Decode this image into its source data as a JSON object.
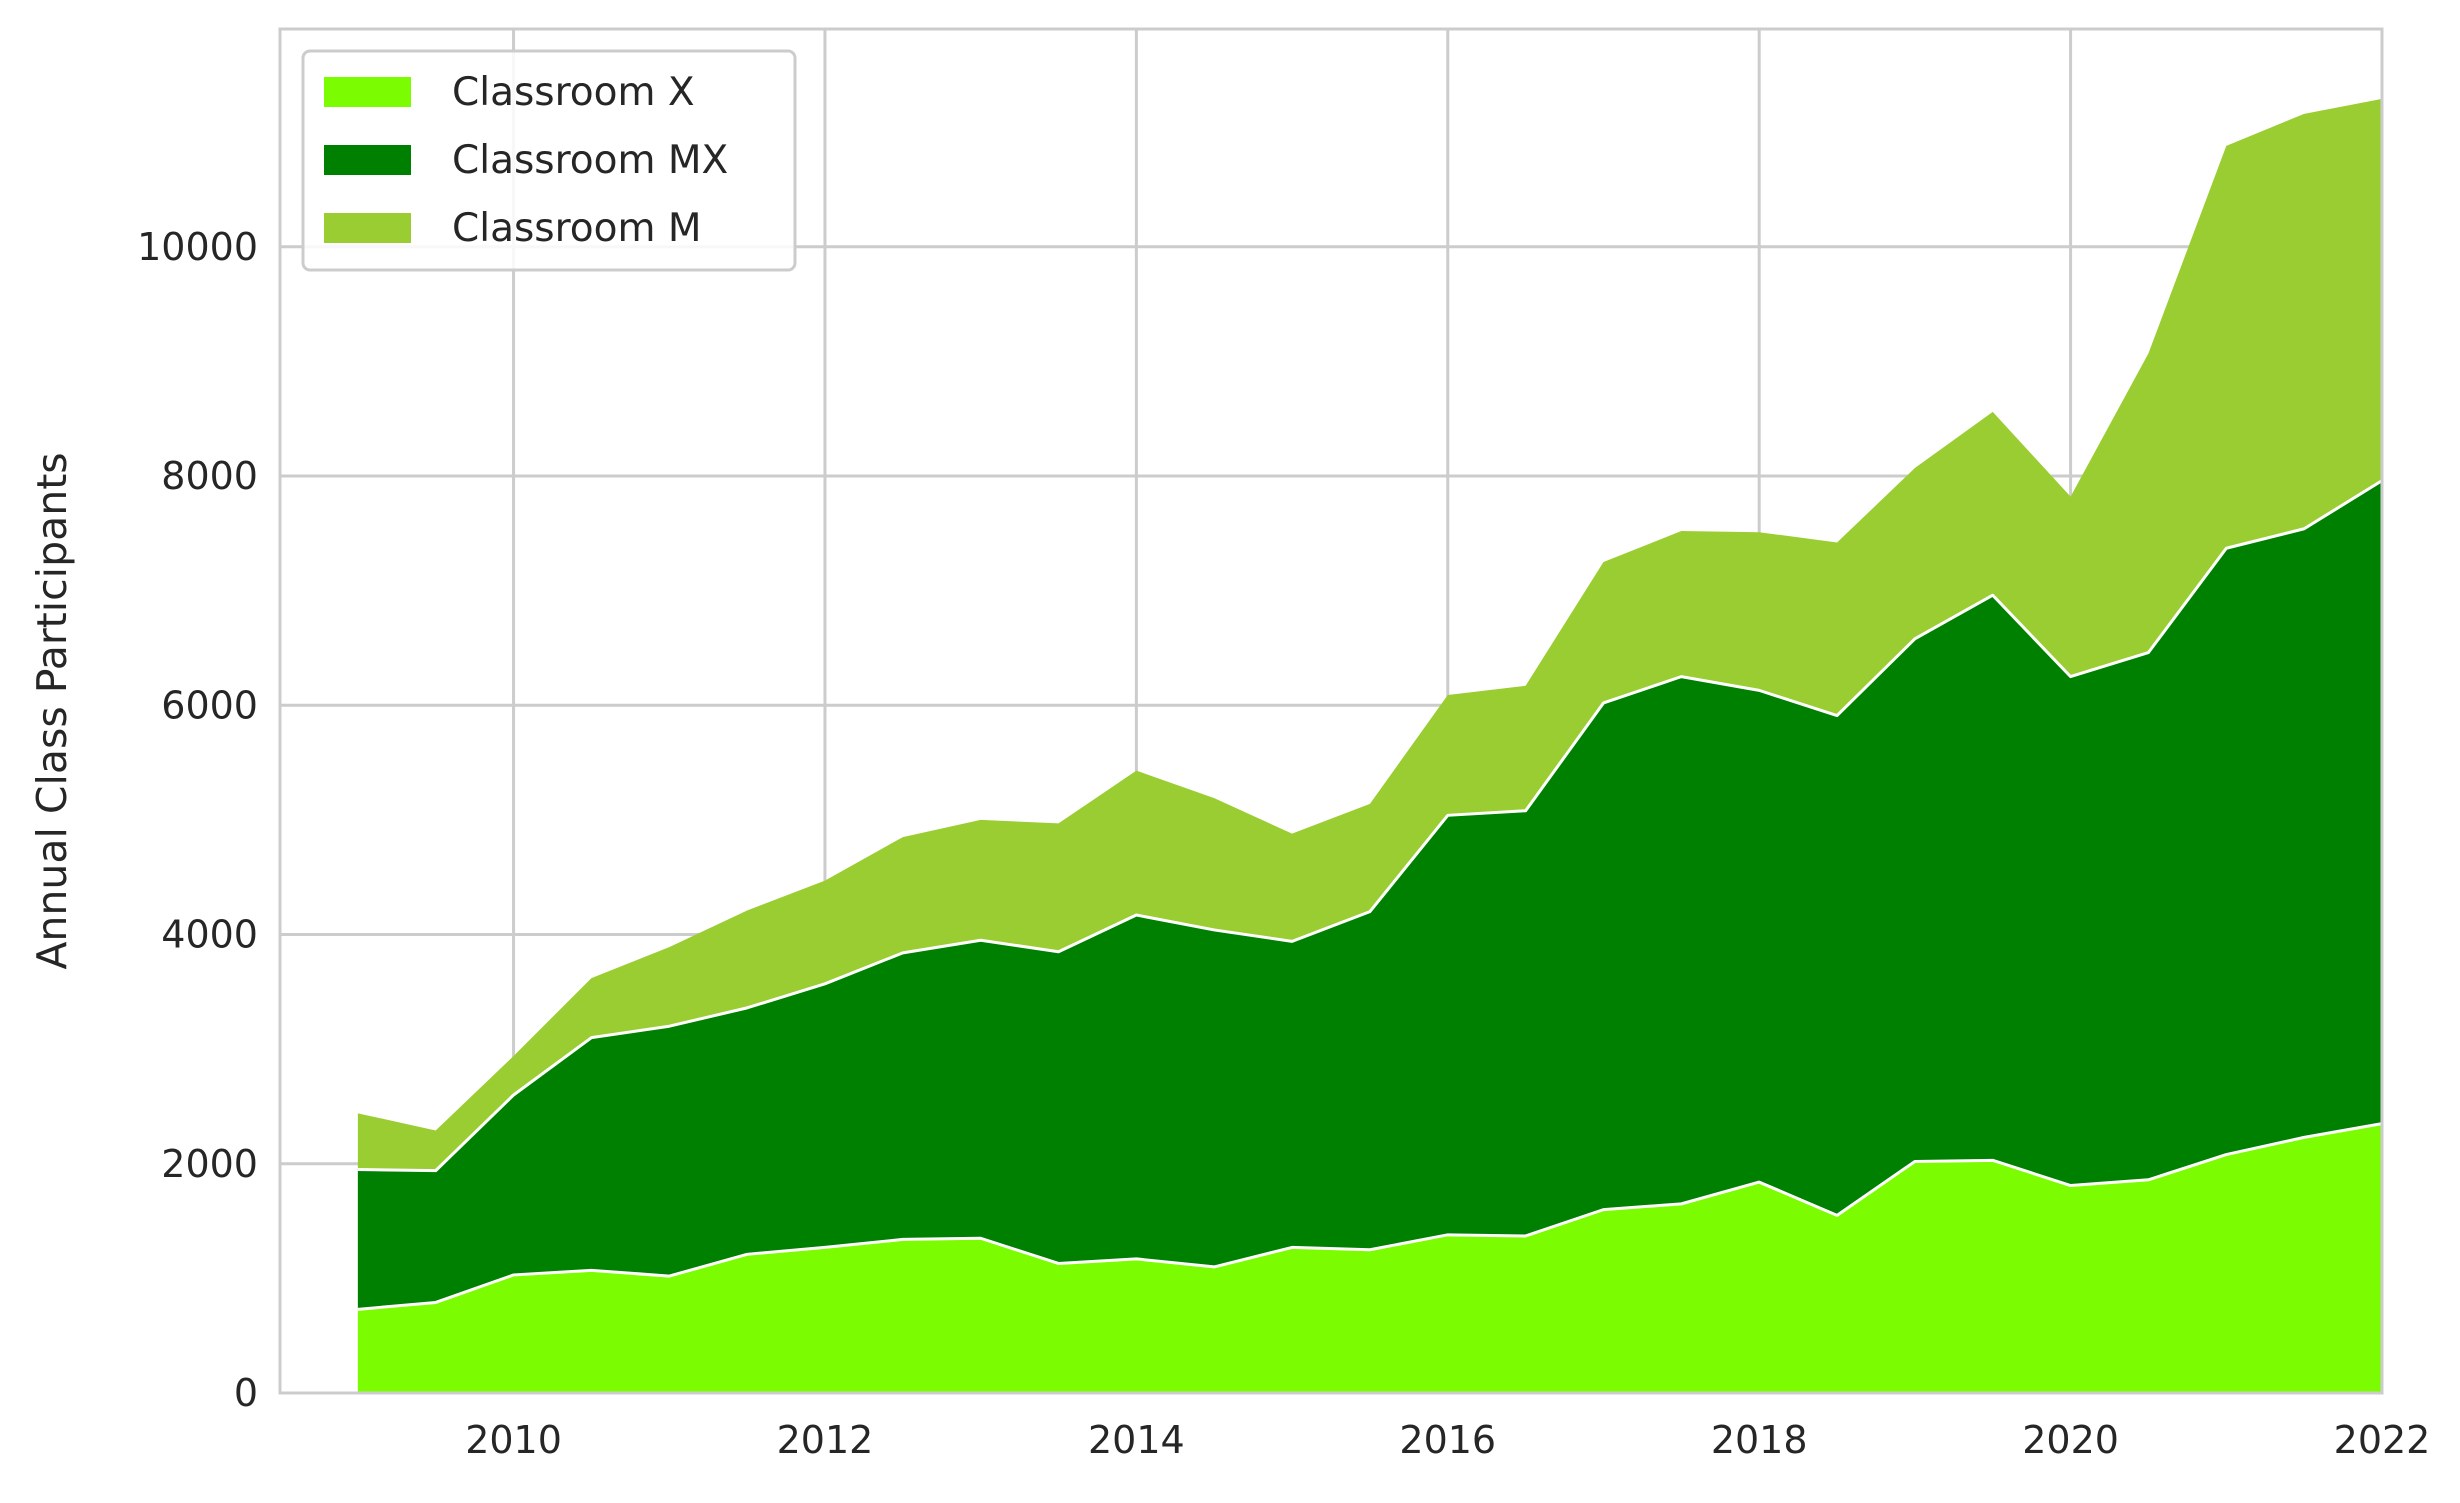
{
  "chart_data": {
    "type": "area",
    "stacked": true,
    "title": "",
    "xlabel": "",
    "ylabel": "Annual Class Participants",
    "xlim": [
      2008.5,
      2022
    ],
    "ylim": [
      0,
      11900
    ],
    "xticks": [
      2010,
      2012,
      2014,
      2016,
      2018,
      2020,
      2022
    ],
    "yticks": [
      0,
      2000,
      4000,
      6000,
      8000,
      10000
    ],
    "grid": true,
    "legend_position": "top-left",
    "x": [
      2009,
      2009.5,
      2010,
      2010.5,
      2011,
      2011.5,
      2012,
      2012.5,
      2013,
      2013.5,
      2014,
      2014.5,
      2015,
      2015.5,
      2016,
      2016.5,
      2017,
      2017.5,
      2018,
      2018.5,
      2019,
      2019.5,
      2020,
      2020.5,
      2021,
      2021.5,
      2022
    ],
    "series": [
      {
        "name": "Classroom X",
        "color": "#7cfc00",
        "values": [
          730,
          790,
          1030,
          1070,
          1020,
          1210,
          1270,
          1340,
          1350,
          1130,
          1170,
          1100,
          1270,
          1250,
          1380,
          1370,
          1600,
          1650,
          1840,
          1550,
          2020,
          2030,
          1810,
          1860,
          2080,
          2230,
          2350
        ]
      },
      {
        "name": "Classroom MX",
        "color": "#008000",
        "values": [
          1220,
          1150,
          1570,
          2030,
          2180,
          2150,
          2300,
          2500,
          2600,
          2720,
          3000,
          2940,
          2670,
          2950,
          3660,
          3710,
          4420,
          4600,
          4290,
          4360,
          4560,
          4930,
          4440,
          4600,
          5290,
          5310,
          5610
        ]
      },
      {
        "name": "Classroom M",
        "color": "#9acd32",
        "values": [
          490,
          350,
          340,
          520,
          690,
          850,
          900,
          1010,
          1050,
          1120,
          1260,
          1150,
          940,
          940,
          1050,
          1090,
          1230,
          1270,
          1380,
          1510,
          1490,
          1600,
          1570,
          2610,
          3510,
          3620,
          3330
        ]
      }
    ]
  }
}
